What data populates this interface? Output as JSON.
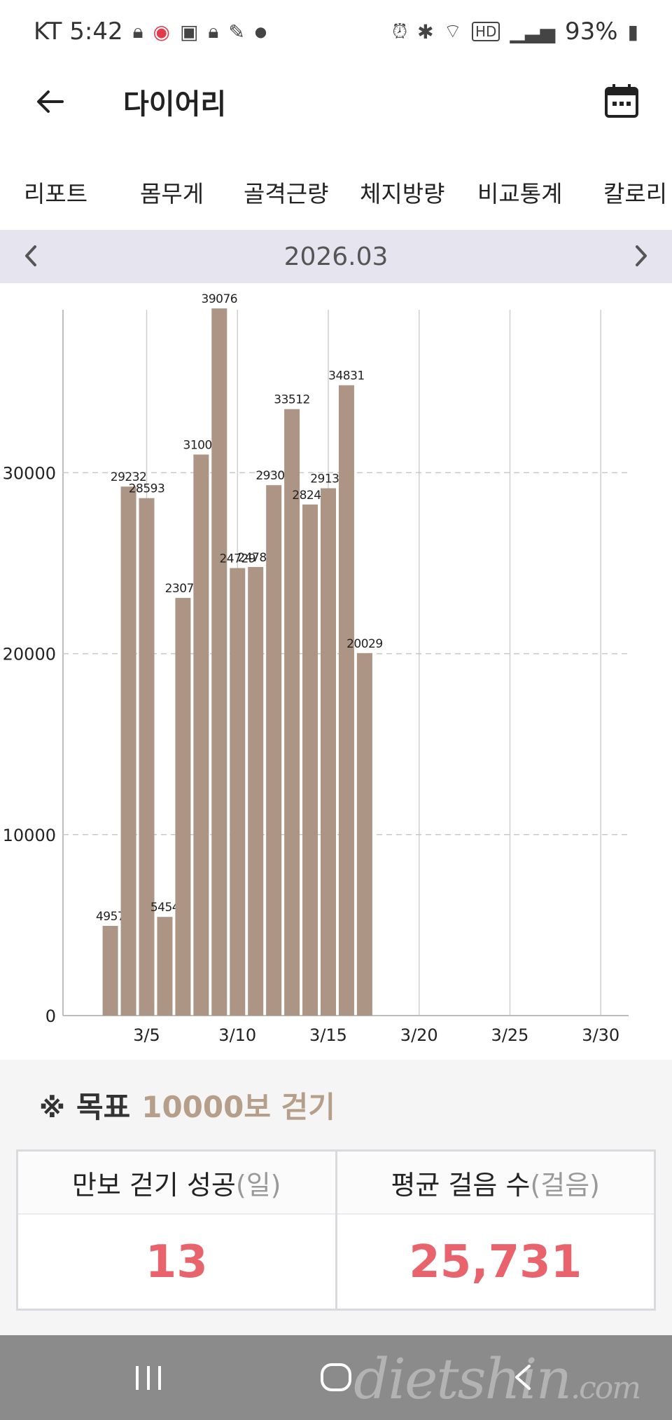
{
  "status_bar": {
    "carrier_time": "KT 5:42",
    "battery": "93%",
    "left_icons": [
      "lock-icon",
      "record-icon",
      "wallet-icon",
      "lock-icon",
      "pen-icon",
      "dot-icon"
    ],
    "right_icons": [
      "alarm-icon",
      "bluetooth-icon",
      "wifi-icon",
      "hd-icon",
      "signal-icon",
      "battery-icon"
    ]
  },
  "app_bar": {
    "title": "다이어리"
  },
  "tabs": [
    "리포트",
    "몸무게",
    "골격근량",
    "체지방량",
    "비교통계",
    "칼로리"
  ],
  "month": {
    "label": "2026.03"
  },
  "chart_data": {
    "type": "bar",
    "title": "",
    "xlabel": "",
    "ylabel": "",
    "xlim": [
      1,
      31
    ],
    "ylim": [
      0,
      39000
    ],
    "y_ticks": [
      0,
      10000,
      20000,
      30000
    ],
    "x_ticks": [
      5,
      10,
      15,
      20,
      25,
      30
    ],
    "x_tick_labels": [
      "3/5",
      "3/10",
      "3/15",
      "3/20",
      "3/25",
      "3/30"
    ],
    "grid": true,
    "bar_color": "#ad9585",
    "days": [
      3,
      4,
      5,
      6,
      7,
      8,
      9,
      10,
      11,
      12,
      13,
      14,
      15,
      16,
      17
    ],
    "values": [
      4957,
      29232,
      28593,
      5454,
      23079,
      31002,
      39076,
      24729,
      24789,
      29309,
      33512,
      28242,
      29139,
      34831,
      20029
    ],
    "data_labels": [
      "4957",
      "29232",
      "28593",
      "5454",
      "23079",
      "31002",
      "39076",
      "24729",
      "24789",
      "29309",
      "33512",
      "28242",
      "29139",
      "34831",
      "20029"
    ]
  },
  "goal": {
    "mark": "※",
    "prefix": "목표",
    "value": "10000보 걷기"
  },
  "stats": [
    {
      "label": "만보 걷기 성공",
      "unit": "(일)",
      "value": "13"
    },
    {
      "label": "평균 걸음 수",
      "unit": "(걸음)",
      "value": "25,731"
    }
  ],
  "watermark": {
    "main": "dietshin",
    "suffix": ".com"
  }
}
